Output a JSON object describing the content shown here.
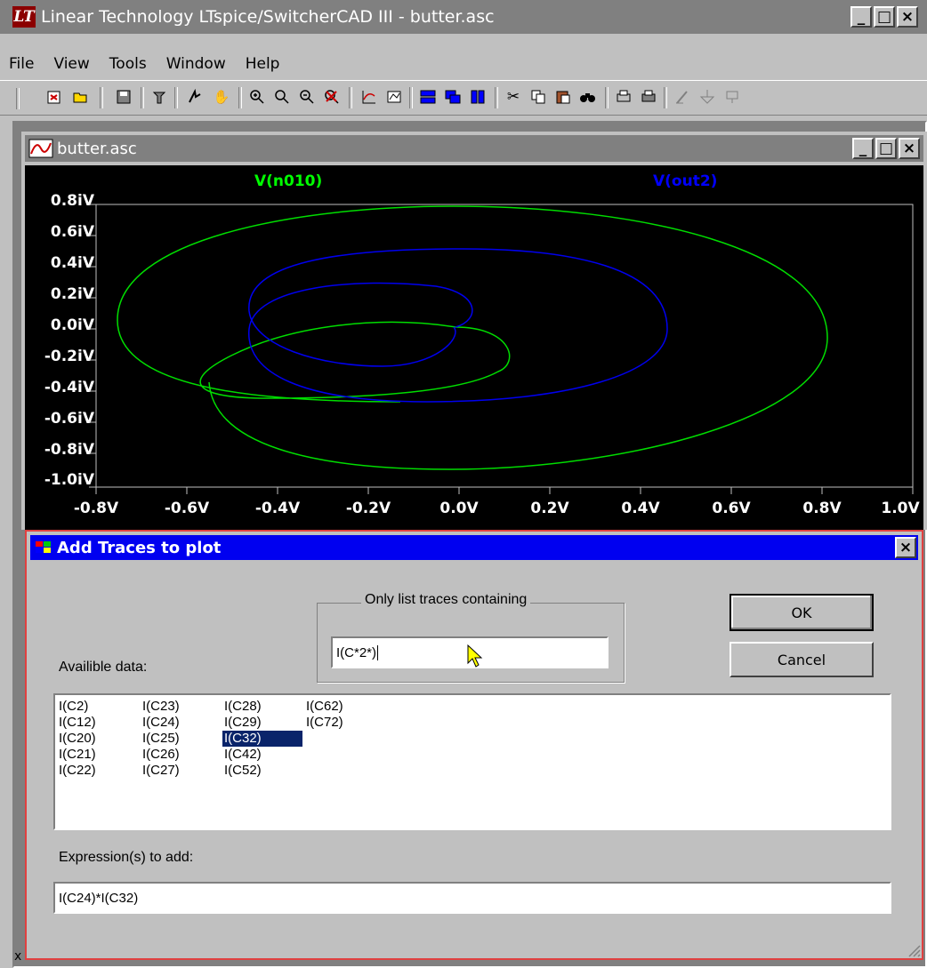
{
  "app": {
    "title": "Linear Technology LTspice/SwitcherCAD III - butter.asc",
    "menu": [
      "File",
      "View",
      "Tools",
      "Window",
      "Help"
    ],
    "toolbar_icons": [
      "new-schematic-icon",
      "open-icon",
      "save-icon",
      "control-panel-icon",
      "run-icon",
      "halt-icon",
      "zoom-in-icon",
      "zoom-fit-icon",
      "zoom-out-icon",
      "zoom-cancel-icon",
      "autorange-icon",
      "add-plot-pane-icon",
      "tile-horizontal-icon",
      "cascade-icon",
      "tile-vertical-icon",
      "cut-icon",
      "copy-icon",
      "paste-icon",
      "find-icon",
      "print-preview-icon",
      "print-icon",
      "draw-wire-icon",
      "ground-icon",
      "label-net-icon"
    ]
  },
  "plot_window": {
    "title": "butter.asc"
  },
  "chart_data": {
    "type": "line",
    "title": "",
    "series": [
      {
        "name": "V(n010)",
        "color": "#00ff00"
      },
      {
        "name": "V(out2)",
        "color": "#0000ff"
      }
    ],
    "x_ticks": [
      "-0.8V",
      "-0.6V",
      "-0.4V",
      "-0.2V",
      "0.0V",
      "0.2V",
      "0.4V",
      "0.6V",
      "0.8V",
      "1.0V"
    ],
    "y_ticks": [
      "0.8iV",
      "0.6iV",
      "0.4iV",
      "0.2iV",
      "0.0iV",
      "-0.2iV",
      "-0.4iV",
      "-0.6iV",
      "-0.8iV",
      "-1.0iV"
    ],
    "xlim": [
      -0.8,
      1.0
    ],
    "ylim": [
      -1.0,
      0.8
    ],
    "grid": false
  },
  "dialog": {
    "title": "Add Traces to plot",
    "filter_group_label": "Only list traces containing",
    "filter_value": "I(C*2*)",
    "ok_label": "OK",
    "cancel_label": "Cancel",
    "available_label": "Availible data:",
    "columns": [
      [
        "I(C2)",
        "I(C12)",
        "I(C20)",
        "I(C21)",
        "I(C22)"
      ],
      [
        "I(C23)",
        "I(C24)",
        "I(C25)",
        "I(C26)",
        "I(C27)"
      ],
      [
        "I(C28)",
        "I(C29)",
        "I(C32)",
        "I(C42)",
        "I(C52)"
      ],
      [
        "I(C62)",
        "I(C72)"
      ]
    ],
    "selected_item": "I(C32)",
    "expression_label": "Expression(s) to add:",
    "expression_value": "I(C24)*I(C32)"
  },
  "status": {
    "left_text": "x"
  }
}
